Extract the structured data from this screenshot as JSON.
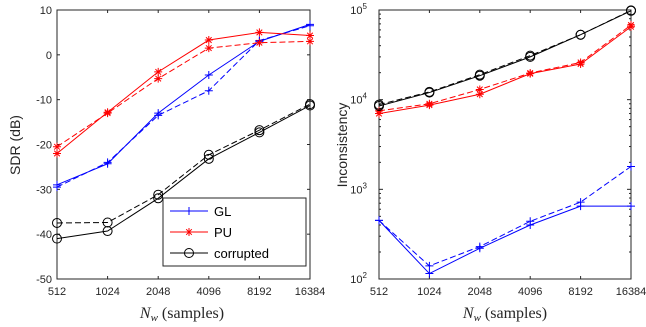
{
  "chart_data": [
    {
      "type": "line",
      "xlabel_var": "N",
      "xlabel_sub": "w",
      "xlabel_rest": " (samples)",
      "ylabel": "SDR (dB)",
      "xscale": "log2",
      "x": [
        512,
        1024,
        2048,
        4096,
        8192,
        16384
      ],
      "xticks": [
        "512",
        "1024",
        "2048",
        "4096",
        "8192",
        "16384"
      ],
      "ylim": [
        -50,
        10
      ],
      "yticks": [
        "10",
        "0",
        "-10",
        "-20",
        "-30",
        "-40",
        "-50"
      ],
      "yticks_values": [
        10,
        0,
        -10,
        -20,
        -30,
        -40,
        -50
      ],
      "series": [
        {
          "group": "GL",
          "style": "solid",
          "marker": "plus",
          "color": "#0000ff",
          "values": [
            -29,
            -24.3,
            -13,
            -4.5,
            3,
            6.8
          ]
        },
        {
          "group": "GL",
          "style": "dashed",
          "marker": "plus",
          "color": "#0000ff",
          "values": [
            -29.5,
            -24,
            -13.5,
            -8,
            3.2,
            6.5
          ]
        },
        {
          "group": "PU",
          "style": "solid",
          "marker": "star",
          "color": "#ff0000",
          "values": [
            -22,
            -12.8,
            -3.8,
            3.3,
            5,
            4.3
          ]
        },
        {
          "group": "PU",
          "style": "dashed",
          "marker": "star",
          "color": "#ff0000",
          "values": [
            -20.5,
            -13,
            -5.3,
            1.5,
            2.7,
            3
          ]
        },
        {
          "group": "corrupted",
          "style": "solid",
          "marker": "circle",
          "color": "#000000",
          "values": [
            -41,
            -39.3,
            -32,
            -23.2,
            -17.3,
            -11.3
          ]
        },
        {
          "group": "corrupted",
          "style": "dashed",
          "marker": "circle",
          "color": "#000000",
          "values": [
            -37.5,
            -37.4,
            -31.2,
            -22.3,
            -16.8,
            -11
          ]
        }
      ],
      "legend": {
        "placement": "bottom-right",
        "entries": [
          "GL",
          "PU",
          "corrupted"
        ]
      }
    },
    {
      "type": "line",
      "xlabel_var": "N",
      "xlabel_sub": "w",
      "xlabel_rest": " (samples)",
      "ylabel": "Inconsistency",
      "xscale": "log2",
      "yscale": "log",
      "x": [
        512,
        1024,
        2048,
        4096,
        8192,
        16384
      ],
      "xticks": [
        "512",
        "1024",
        "2048",
        "4096",
        "8192",
        "16384"
      ],
      "ylim": [
        100,
        100000
      ],
      "yticks_base": [
        "10",
        "10",
        "10",
        "10"
      ],
      "yticks_exp": [
        "2",
        "3",
        "4",
        "5"
      ],
      "series": [
        {
          "group": "GL",
          "style": "solid",
          "marker": "plus",
          "color": "#0000ff",
          "values": [
            450,
            115,
            220,
            400,
            650,
            650
          ]
        },
        {
          "group": "GL",
          "style": "dashed",
          "marker": "plus",
          "color": "#0000ff",
          "values": [
            450,
            140,
            230,
            440,
            720,
            1800
          ]
        },
        {
          "group": "PU",
          "style": "solid",
          "marker": "star",
          "color": "#ff0000",
          "values": [
            7000,
            8700,
            11500,
            19500,
            25000,
            65000
          ]
        },
        {
          "group": "PU",
          "style": "dashed",
          "marker": "star",
          "color": "#ff0000",
          "values": [
            7500,
            9000,
            13000,
            19800,
            26000,
            68000
          ]
        },
        {
          "group": "corrupted",
          "style": "solid",
          "marker": "circle",
          "color": "#000000",
          "values": [
            8500,
            12000,
            18500,
            30000,
            53000,
            98000
          ]
        },
        {
          "group": "corrupted",
          "style": "dashed",
          "marker": "circle",
          "color": "#000000",
          "values": [
            8800,
            12200,
            19000,
            31000,
            53000,
            99000
          ]
        }
      ]
    }
  ]
}
